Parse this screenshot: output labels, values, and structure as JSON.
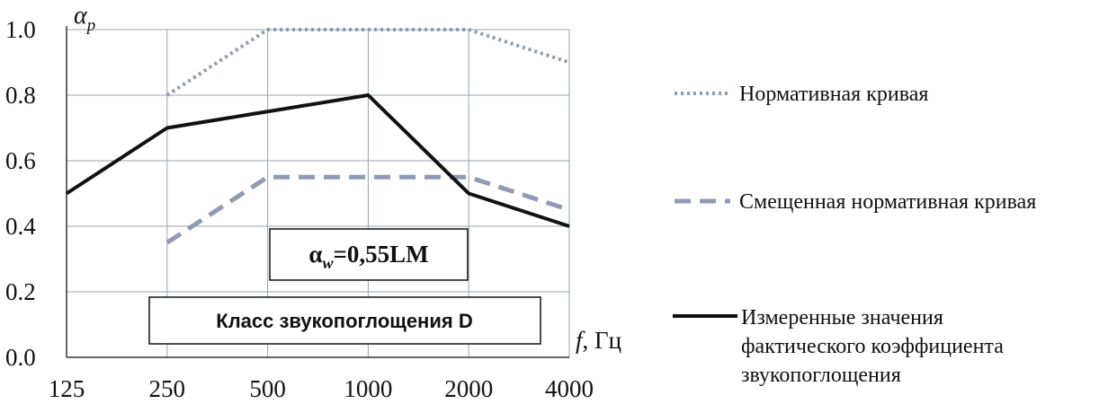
{
  "chart_data": {
    "type": "line",
    "categories": [
      "125",
      "250",
      "500",
      "1000",
      "2000",
      "4000"
    ],
    "y_ticks": [
      "0.0",
      "0.2",
      "0.4",
      "0.6",
      "0.8",
      "1.0"
    ],
    "ylim": [
      0,
      1.0
    ],
    "ylabel": {
      "base": "α",
      "sub": "p"
    },
    "xlabel": {
      "italic": "f",
      "unit": ", Гц"
    },
    "grid": true,
    "legend_position": "right",
    "series": [
      {
        "name": "Нормативная кривая",
        "style": "dotted",
        "color": "#8a9bb0",
        "values": [
          null,
          0.8,
          1.0,
          1.0,
          1.0,
          0.9
        ]
      },
      {
        "name": "Смещенная нормативная кривая",
        "style": "dashed",
        "color": "#8e9bb4",
        "values": [
          null,
          0.35,
          0.55,
          0.55,
          0.55,
          0.45
        ]
      },
      {
        "name_lines": [
          "Измеренные значения",
          "фактического коэффициента",
          "звукопоглощения"
        ],
        "style": "solid",
        "color": "#111111",
        "values": [
          0.5,
          0.7,
          0.75,
          0.8,
          0.5,
          0.4
        ]
      }
    ],
    "annotations": {
      "alpha_w": {
        "base": "α",
        "sub": "w",
        "rest": "=0,55LM"
      },
      "sound_class": "Класс звукопоглощения D"
    }
  }
}
